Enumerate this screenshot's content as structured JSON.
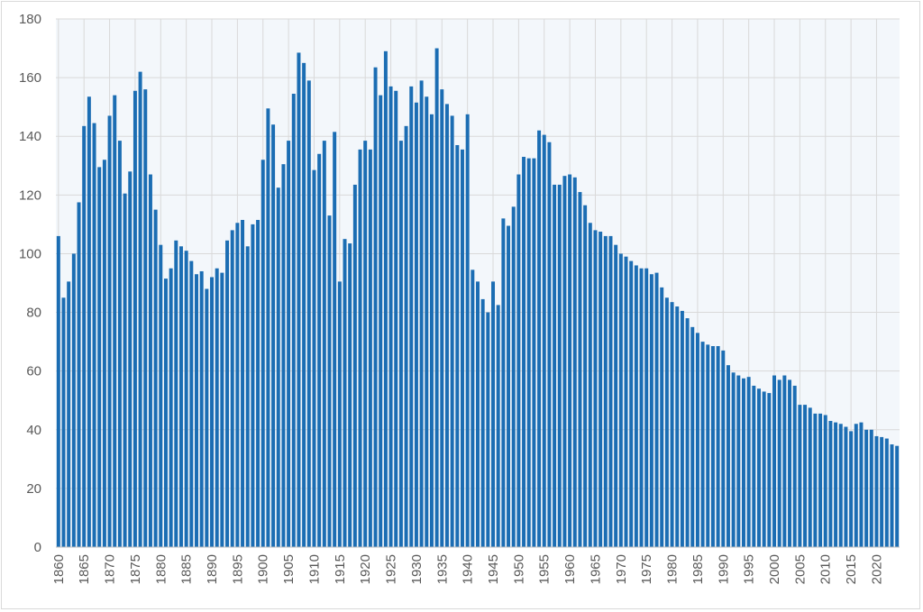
{
  "chart_data": {
    "type": "bar",
    "title": "",
    "xlabel": "",
    "ylabel": "",
    "ylim": [
      0,
      180
    ],
    "yticks": [
      0,
      20,
      40,
      60,
      80,
      100,
      120,
      140,
      160,
      180
    ],
    "xtick_step": 5,
    "grid": true,
    "legend": "none",
    "colors": {
      "bar": "#1b6db3",
      "plot_bg": "#f3f7fb",
      "grid": "#d9d9d9"
    },
    "x_start": 1860,
    "categories": [
      1860,
      1861,
      1862,
      1863,
      1864,
      1865,
      1866,
      1867,
      1868,
      1869,
      1870,
      1871,
      1872,
      1873,
      1874,
      1875,
      1876,
      1877,
      1878,
      1879,
      1880,
      1881,
      1882,
      1883,
      1884,
      1885,
      1886,
      1887,
      1888,
      1889,
      1890,
      1891,
      1892,
      1893,
      1894,
      1895,
      1896,
      1897,
      1898,
      1899,
      1900,
      1901,
      1902,
      1903,
      1904,
      1905,
      1906,
      1907,
      1908,
      1909,
      1910,
      1911,
      1912,
      1913,
      1914,
      1915,
      1916,
      1917,
      1918,
      1919,
      1920,
      1921,
      1922,
      1923,
      1924,
      1925,
      1926,
      1927,
      1928,
      1929,
      1930,
      1931,
      1932,
      1933,
      1934,
      1935,
      1936,
      1937,
      1938,
      1939,
      1940,
      1941,
      1942,
      1943,
      1944,
      1945,
      1946,
      1947,
      1948,
      1949,
      1950,
      1951,
      1952,
      1953,
      1954,
      1955,
      1956,
      1957,
      1958,
      1959,
      1960,
      1961,
      1962,
      1963,
      1964,
      1965,
      1966,
      1967,
      1968,
      1969,
      1970,
      1971,
      1972,
      1973,
      1974,
      1975,
      1976,
      1977,
      1978,
      1979,
      1980,
      1981,
      1982,
      1983,
      1984,
      1985,
      1986,
      1987,
      1988,
      1989,
      1990,
      1991,
      1992,
      1993,
      1994,
      1995,
      1996,
      1997,
      1998,
      1999,
      2000,
      2001,
      2002,
      2003,
      2004,
      2005,
      2006,
      2007,
      2008,
      2009,
      2010,
      2011,
      2012,
      2013,
      2014,
      2015,
      2016,
      2017,
      2018,
      2019,
      2020,
      2021,
      2022,
      2023,
      2024
    ],
    "values": [
      106,
      85,
      90.5,
      100,
      117.5,
      143.5,
      153.5,
      144.5,
      129.5,
      132,
      147,
      154,
      138.5,
      120.5,
      128,
      155.5,
      162,
      156,
      127,
      115,
      103,
      91.5,
      95,
      104.5,
      102.5,
      101,
      97.5,
      93,
      94,
      88,
      92,
      95,
      93.5,
      104.5,
      108,
      110.5,
      111.5,
      102.5,
      110,
      111.5,
      132,
      149.5,
      144,
      122.5,
      130.5,
      138.5,
      154.5,
      168.5,
      165,
      159,
      128.5,
      134,
      138.5,
      113,
      141.5,
      90.5,
      105,
      103.5,
      123.5,
      135.5,
      138.5,
      135.5,
      163.5,
      154,
      169,
      157,
      155.5,
      138.5,
      143.5,
      157,
      151.5,
      159,
      153.5,
      147.5,
      170,
      156,
      151,
      147,
      137,
      135.5,
      147.5,
      94.5,
      90.5,
      84.5,
      80,
      90.5,
      82.5,
      112,
      109.5,
      116,
      127,
      133,
      132.5,
      132.5,
      142,
      140.5,
      138,
      123.5,
      123.5,
      126.5,
      127,
      126,
      121,
      116.5,
      110.5,
      108,
      107.5,
      106,
      106,
      103,
      100,
      99,
      97.5,
      96,
      95,
      95,
      93,
      93.5,
      88.5,
      85,
      83.5,
      82,
      80.5,
      78,
      75,
      73,
      70,
      69,
      68.5,
      68.5,
      67,
      62,
      59.5,
      58.5,
      57.5,
      58,
      55,
      54,
      53,
      52.5,
      58.5,
      57,
      58.5,
      57,
      55,
      48.5,
      48.5,
      47.5,
      45.5,
      45.5,
      45,
      43,
      42.5,
      42,
      41,
      39.5,
      42,
      42.5,
      40,
      40,
      37.8,
      37.5,
      37,
      35,
      34.5
    ]
  }
}
